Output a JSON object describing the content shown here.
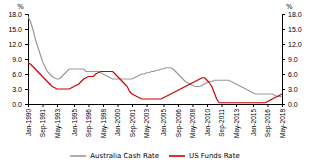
{
  "chart_data": {
    "type": "line",
    "ylabel": "%",
    "y2label": "%",
    "categories": [
      "Jan-1990",
      null,
      null,
      null,
      null,
      null,
      "Sep-1991",
      null,
      null,
      null,
      null,
      null,
      "May-1993",
      null,
      null,
      null,
      null,
      null,
      null,
      "Jan-1995",
      null,
      null,
      null,
      null,
      null,
      "Sep-1996",
      null,
      null,
      null,
      null,
      null,
      "May-1998",
      null,
      null,
      null,
      null,
      null,
      "Jan-2000",
      null,
      null,
      null,
      null,
      null,
      "Sep-2001",
      null,
      null,
      null,
      null,
      null,
      "May-2003",
      null,
      null,
      null,
      null,
      null,
      null,
      "Jan-2005",
      null,
      null,
      null,
      null,
      null,
      "Sep-2006",
      null,
      null,
      null,
      null,
      null,
      "May-2008",
      null,
      null,
      null,
      null,
      null,
      "Jan-2010",
      null,
      null,
      null,
      null,
      null,
      "Sep-2011",
      null,
      null,
      null,
      null,
      null,
      "May-2013",
      null,
      null,
      null,
      null,
      null,
      null,
      "Jan-2015",
      null,
      null,
      null,
      null,
      null,
      "Sep-2016",
      null,
      null,
      null,
      null,
      null,
      "May-2018"
    ],
    "series": [
      {
        "name": "Australia Cash Rate",
        "color": "#999999",
        "values": [
          17.5,
          16.5,
          15.0,
          13.0,
          11.5,
          10.0,
          8.5,
          7.5,
          6.5,
          6.0,
          5.5,
          5.2,
          5.0,
          5.0,
          5.5,
          6.0,
          6.5,
          7.0,
          7.0,
          7.0,
          7.0,
          7.0,
          7.0,
          7.0,
          6.5,
          6.5,
          6.5,
          6.5,
          6.5,
          6.5,
          6.25,
          6.0,
          5.75,
          5.5,
          5.25,
          5.0,
          5.0,
          5.0,
          5.0,
          5.0,
          5.0,
          5.0,
          5.0,
          5.0,
          5.25,
          5.5,
          5.75,
          6.0,
          6.0,
          6.25,
          6.25,
          6.5,
          6.5,
          6.75,
          6.75,
          7.0,
          7.0,
          7.25,
          7.25,
          7.25,
          7.0,
          6.5,
          6.0,
          5.5,
          5.0,
          4.5,
          4.25,
          4.0,
          3.75,
          3.5,
          3.5,
          3.5,
          3.75,
          4.0,
          4.25,
          4.5,
          4.5,
          4.75,
          4.75,
          4.75,
          4.75,
          4.75,
          4.75,
          4.75,
          4.5,
          4.25,
          4.0,
          3.75,
          3.5,
          3.25,
          3.0,
          2.75,
          2.5,
          2.25,
          2.0,
          2.0,
          2.0,
          2.0,
          2.0,
          2.0,
          2.0,
          2.0,
          1.75,
          1.5,
          1.5,
          1.5
        ]
      },
      {
        "name": "US Funds Rate",
        "color": "#cc0000",
        "values": [
          8.25,
          8.0,
          7.5,
          7.0,
          6.5,
          6.0,
          5.5,
          5.0,
          4.5,
          4.0,
          3.5,
          3.25,
          3.0,
          3.0,
          3.0,
          3.0,
          3.0,
          3.0,
          3.25,
          3.5,
          3.75,
          4.0,
          4.5,
          5.0,
          5.25,
          5.5,
          5.5,
          5.5,
          6.0,
          6.25,
          6.5,
          6.5,
          6.5,
          6.5,
          6.5,
          6.5,
          6.0,
          5.5,
          5.0,
          4.5,
          4.0,
          3.5,
          2.5,
          2.0,
          1.75,
          1.5,
          1.25,
          1.0,
          1.0,
          1.0,
          1.0,
          1.0,
          1.0,
          1.0,
          1.0,
          1.0,
          1.25,
          1.5,
          1.75,
          2.0,
          2.25,
          2.5,
          2.75,
          3.0,
          3.25,
          3.5,
          3.75,
          4.0,
          4.25,
          4.5,
          4.75,
          5.0,
          5.25,
          5.25,
          4.75,
          4.25,
          3.5,
          2.25,
          1.0,
          0.25,
          0.25,
          0.25,
          0.25,
          0.25,
          0.25,
          0.25,
          0.25,
          0.25,
          0.25,
          0.25,
          0.25,
          0.25,
          0.25,
          0.25,
          0.25,
          0.25,
          0.25,
          0.25,
          0.25,
          0.5,
          0.75,
          1.0,
          1.25,
          1.5,
          1.75,
          2.0
        ]
      }
    ],
    "ylim": [
      0,
      18.0
    ],
    "yticks": [
      {
        "value": 0.0,
        "label": "0.0"
      },
      {
        "value": 3.0,
        "label": "3.0"
      },
      {
        "value": 6.0,
        "label": "6.0"
      },
      {
        "value": 9.0,
        "label": "9.0"
      },
      {
        "value": 12.0,
        "label": "12.0"
      },
      {
        "value": 15.0,
        "label": "15.0"
      },
      {
        "value": 18.0,
        "label": "18.0"
      }
    ],
    "y2lim": [
      0,
      18.0
    ],
    "y2ticks": [
      {
        "value": 0.0,
        "label": "0.0"
      },
      {
        "value": 3.0,
        "label": "3.0"
      },
      {
        "value": 6.0,
        "label": "6.0"
      },
      {
        "value": 9.0,
        "label": "9.0"
      },
      {
        "value": 12.0,
        "label": "12.0"
      },
      {
        "value": 15.0,
        "label": "15.0"
      },
      {
        "value": 18.0,
        "label": "18.0"
      }
    ],
    "grid": false,
    "legend": "bottom"
  }
}
